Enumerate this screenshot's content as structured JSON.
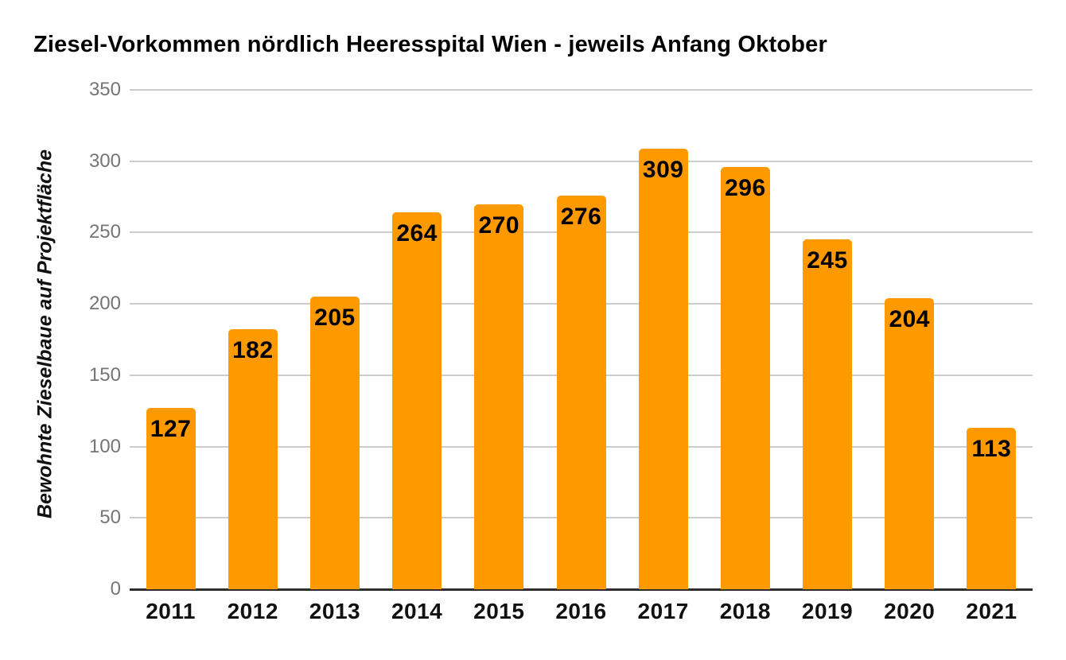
{
  "chart_data": {
    "type": "bar",
    "title": "Ziesel-Vorkommen nördlich Heeresspital Wien - jeweils Anfang Oktober",
    "ylabel": "Bewohnte Zieselbaue auf Projektfläche",
    "xlabel": "",
    "categories": [
      "2011",
      "2012",
      "2013",
      "2014",
      "2015",
      "2016",
      "2017",
      "2018",
      "2019",
      "2020",
      "2021"
    ],
    "values": [
      127,
      182,
      205,
      264,
      270,
      276,
      309,
      296,
      245,
      204,
      113
    ],
    "ylim": [
      0,
      350
    ],
    "yticks": [
      0,
      50,
      100,
      150,
      200,
      250,
      300,
      350
    ],
    "grid": true,
    "legend_position": "none",
    "value_labels_shown": true,
    "colors": {
      "bar": "#ff9900",
      "value_label": "#000000",
      "y_tick_label": "#757575",
      "x_tick_label": "#111111",
      "gridline": "#cccccc",
      "baseline": "#2e2e2e",
      "title": "#000000",
      "background": "#ffffff"
    }
  }
}
